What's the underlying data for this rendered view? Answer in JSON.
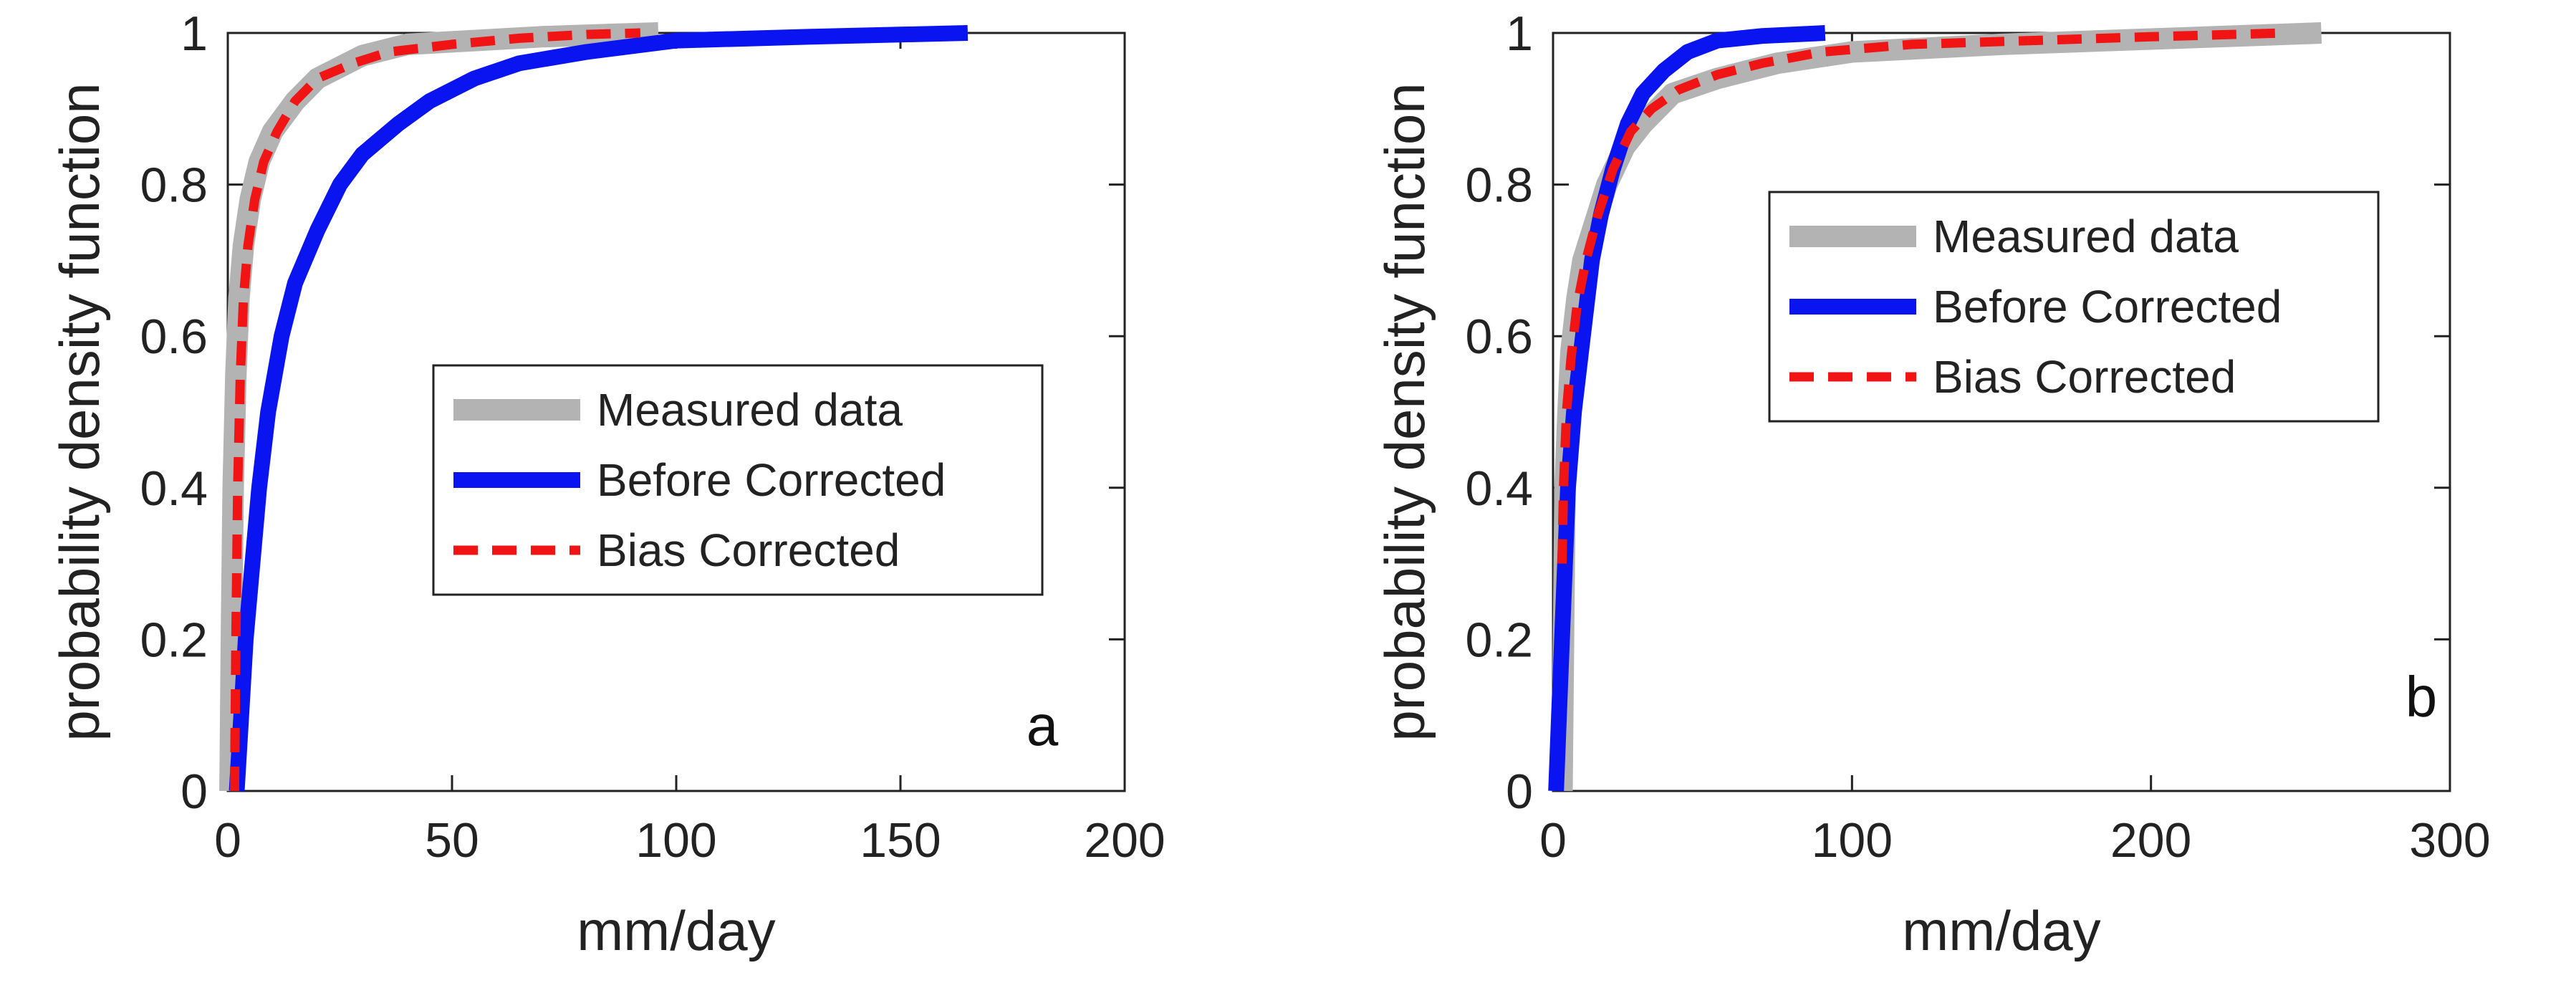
{
  "chart_data": [
    {
      "type": "line",
      "panel_label": "a",
      "xlabel": "mm/day",
      "ylabel": "probability density function",
      "xlim": [
        0,
        200
      ],
      "ylim": [
        0,
        1
      ],
      "xticks": [
        0,
        50,
        100,
        150,
        200
      ],
      "yticks": [
        0,
        0.2,
        0.4,
        0.6,
        0.8,
        1
      ],
      "xtick_labels": [
        "0",
        "50",
        "100",
        "150",
        "200"
      ],
      "ytick_labels": [
        "0",
        "0.2",
        "0.4",
        "0.6",
        "0.8",
        "1"
      ],
      "legend_position": "center-right",
      "series": [
        {
          "name": "Measured data",
          "color": "#b3b3b3",
          "style": "solid-thick",
          "x": [
            0.5,
            0.8,
            1.2,
            1.8,
            2.5,
            3.5,
            5,
            7,
            10,
            15,
            20,
            30,
            40,
            55,
            70,
            85,
            96
          ],
          "y": [
            0.0,
            0.2,
            0.4,
            0.55,
            0.65,
            0.72,
            0.78,
            0.83,
            0.87,
            0.91,
            0.94,
            0.97,
            0.985,
            0.99,
            0.995,
            0.998,
            1.0
          ]
        },
        {
          "name": "Before Corrected",
          "color": "#0a14f0",
          "style": "solid",
          "x": [
            2,
            3,
            4,
            5.5,
            7,
            9,
            12,
            15,
            20,
            25,
            30,
            38,
            45,
            55,
            65,
            80,
            100,
            130,
            165
          ],
          "y": [
            0.0,
            0.1,
            0.2,
            0.3,
            0.4,
            0.5,
            0.6,
            0.67,
            0.74,
            0.8,
            0.84,
            0.88,
            0.91,
            0.94,
            0.96,
            0.975,
            0.99,
            0.995,
            1.0
          ]
        },
        {
          "name": "Bias Corrected",
          "color": "#f01414",
          "style": "dashed",
          "x": [
            1.5,
            1.8,
            2.2,
            2.8,
            3.5,
            4.5,
            6,
            8,
            11,
            15,
            20,
            28,
            36,
            50,
            65,
            80,
            92
          ],
          "y": [
            0.0,
            0.2,
            0.4,
            0.55,
            0.65,
            0.72,
            0.78,
            0.83,
            0.87,
            0.91,
            0.94,
            0.96,
            0.975,
            0.985,
            0.993,
            0.998,
            1.0
          ]
        }
      ]
    },
    {
      "type": "line",
      "panel_label": "b",
      "xlabel": "mm/day",
      "ylabel": "probability density function",
      "xlim": [
        0,
        300
      ],
      "ylim": [
        0,
        1
      ],
      "xticks": [
        0,
        100,
        200,
        300
      ],
      "yticks": [
        0,
        0.2,
        0.4,
        0.6,
        0.8,
        1
      ],
      "xtick_labels": [
        "0",
        "100",
        "200",
        "300"
      ],
      "ytick_labels": [
        "0",
        "0.2",
        "0.4",
        "0.6",
        "0.8",
        "1"
      ],
      "legend_position": "top-right",
      "series": [
        {
          "name": "Measured data",
          "color": "#b3b3b3",
          "style": "solid-thick",
          "x": [
            3,
            3.5,
            4,
            5,
            6,
            8,
            10,
            14,
            18,
            24,
            30,
            40,
            55,
            75,
            100,
            150,
            200,
            257
          ],
          "y": [
            0.0,
            0.2,
            0.4,
            0.5,
            0.58,
            0.65,
            0.7,
            0.75,
            0.8,
            0.85,
            0.88,
            0.92,
            0.94,
            0.96,
            0.975,
            0.985,
            0.992,
            1.0
          ]
        },
        {
          "name": "Before Corrected",
          "color": "#0a14f0",
          "style": "solid",
          "x": [
            1,
            2,
            3.5,
            5,
            7,
            10,
            13,
            16,
            20,
            25,
            30,
            37,
            45,
            55,
            70,
            91
          ],
          "y": [
            0.0,
            0.1,
            0.25,
            0.4,
            0.5,
            0.6,
            0.7,
            0.76,
            0.82,
            0.88,
            0.92,
            0.95,
            0.975,
            0.99,
            0.996,
            1.0
          ]
        },
        {
          "name": "Bias Corrected",
          "color": "#f01414",
          "style": "dashed",
          "x": [
            3,
            3.5,
            4.5,
            6,
            8,
            11,
            15,
            20,
            26,
            33,
            42,
            55,
            70,
            90,
            120,
            160,
            200,
            245
          ],
          "y": [
            0.3,
            0.4,
            0.5,
            0.57,
            0.64,
            0.7,
            0.76,
            0.82,
            0.87,
            0.9,
            0.925,
            0.945,
            0.96,
            0.975,
            0.985,
            0.99,
            0.995,
            1.0
          ]
        }
      ]
    }
  ]
}
